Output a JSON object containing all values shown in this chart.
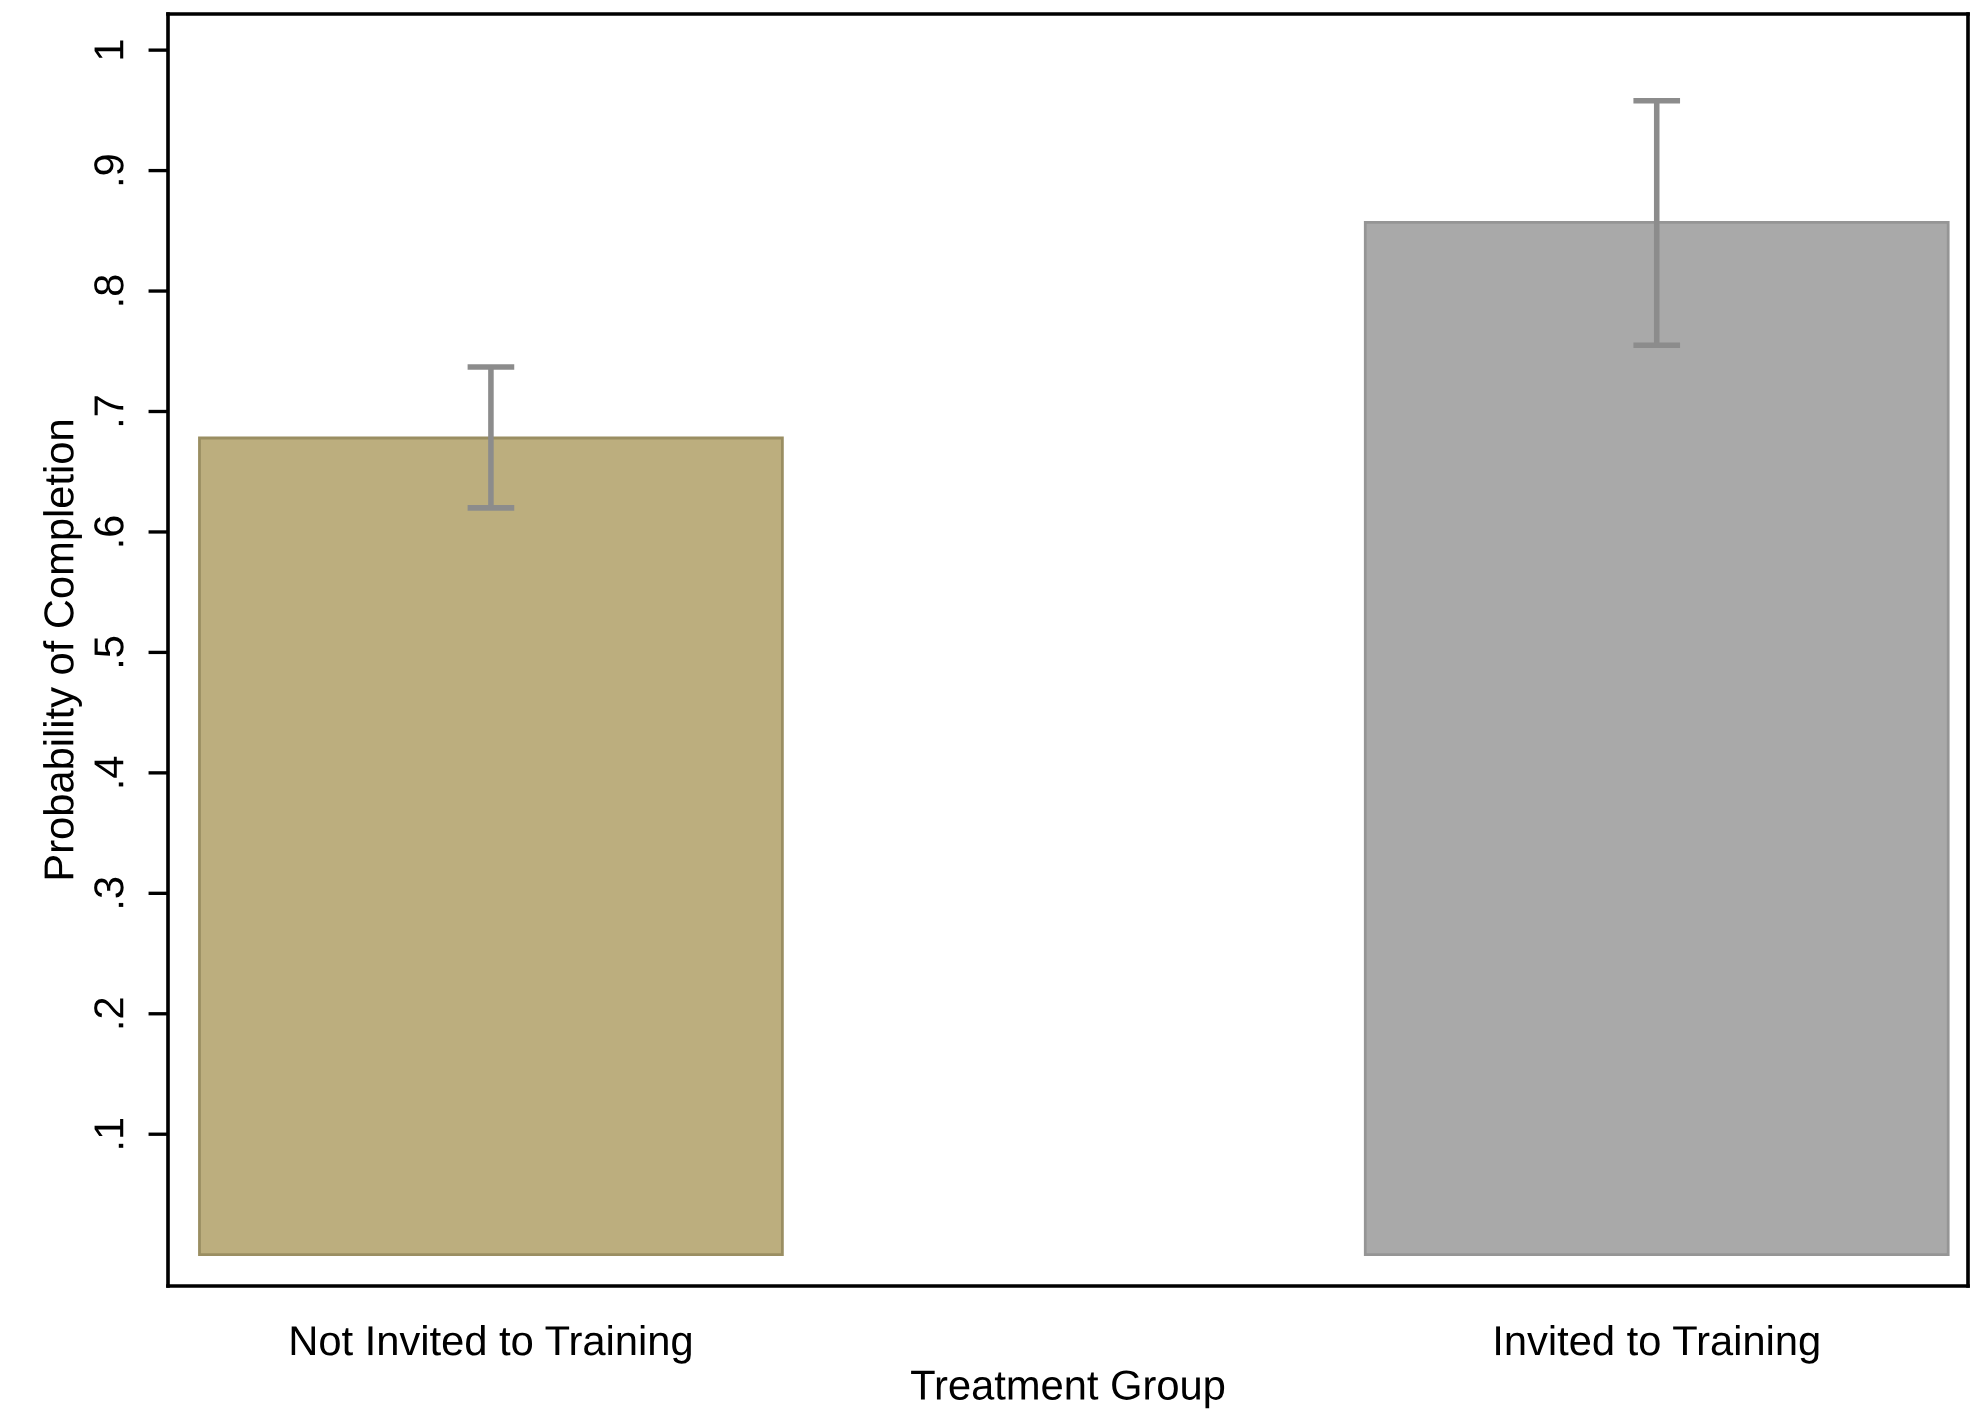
{
  "chart_data": {
    "type": "bar",
    "xlabel": "Treatment Group",
    "ylabel": "Probability of Completion",
    "categories": [
      "Not Invited to Training",
      "Invited to Training"
    ],
    "values": [
      0.678,
      0.857
    ],
    "colors": [
      "#bcae7e",
      "#a9a9a9"
    ],
    "errors": [
      [
        0.62,
        0.737
      ],
      [
        0.755,
        0.958
      ]
    ],
    "ylim": [
      -0.026,
      1.03
    ],
    "yticks": [
      {
        "value": 0.1,
        "label": ".1"
      },
      {
        "value": 0.2,
        "label": ".2"
      },
      {
        "value": 0.3,
        "label": ".3"
      },
      {
        "value": 0.4,
        "label": ".4"
      },
      {
        "value": 0.5,
        "label": ".5"
      },
      {
        "value": 0.6,
        "label": ".6"
      },
      {
        "value": 0.7,
        "label": ".7"
      },
      {
        "value": 0.8,
        "label": ".8"
      },
      {
        "value": 0.9,
        "label": ".9"
      },
      1
    ],
    "grid": false,
    "legend": false
  }
}
